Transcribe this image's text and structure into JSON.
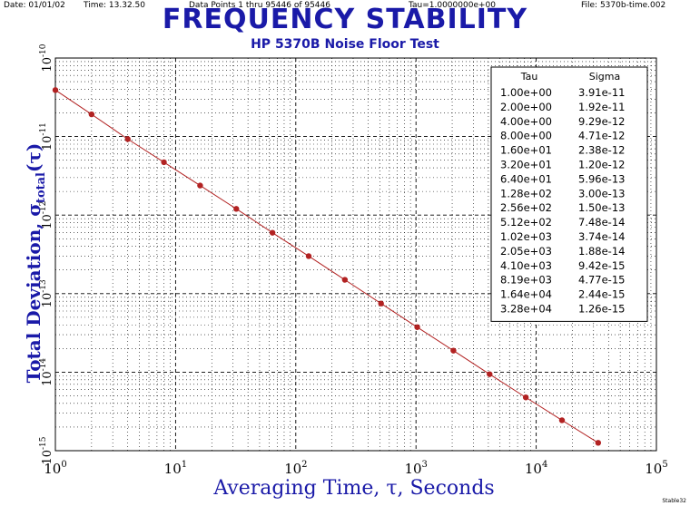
{
  "header": {
    "date": "Date: 01/01/02",
    "time": "Time: 13.32.50",
    "points": "Data Points 1 thru 95446 of 95446",
    "tau": "Tau=1.0000000e+00",
    "file": "File: 5370b-time.002"
  },
  "corner_mark": "Stable32",
  "colors": {
    "title": "#1a1aa8",
    "curve": "#b22222",
    "marker": "#b22222",
    "grid": "#000000"
  },
  "chart_data": {
    "type": "line",
    "title": "FREQUENCY STABILITY",
    "subtitle": "HP 5370B Noise Floor Test",
    "xlabel": "Averaging Time, τ, Seconds",
    "ylabel_main": "Total Deviation, σ",
    "ylabel_sub": "total",
    "ylabel_arg": "(τ)",
    "xscale": "log",
    "yscale": "log",
    "xlim": [
      1,
      100000
    ],
    "ylim": [
      1e-15,
      1e-10
    ],
    "grid": true,
    "legend": "top-right",
    "x_ticks": [
      {
        "value": 1,
        "base": "10",
        "exp": "0"
      },
      {
        "value": 10,
        "base": "10",
        "exp": "1"
      },
      {
        "value": 100,
        "base": "10",
        "exp": "2"
      },
      {
        "value": 1000,
        "base": "10",
        "exp": "3"
      },
      {
        "value": 10000,
        "base": "10",
        "exp": "4"
      },
      {
        "value": 100000,
        "base": "10",
        "exp": "5"
      }
    ],
    "y_ticks": [
      {
        "value": 1e-10,
        "base": "10",
        "exp": "-10"
      },
      {
        "value": 1e-11,
        "base": "10",
        "exp": "-11"
      },
      {
        "value": 1e-12,
        "base": "10",
        "exp": "-12"
      },
      {
        "value": 1e-13,
        "base": "10",
        "exp": "-13"
      },
      {
        "value": 1e-14,
        "base": "10",
        "exp": "-14"
      },
      {
        "value": 1e-15,
        "base": "10",
        "exp": "-15"
      }
    ],
    "table": {
      "headers": [
        "Tau",
        "Sigma"
      ],
      "rows": [
        [
          "1.00e+00",
          "3.91e-11"
        ],
        [
          "2.00e+00",
          "1.92e-11"
        ],
        [
          "4.00e+00",
          "9.29e-12"
        ],
        [
          "8.00e+00",
          "4.71e-12"
        ],
        [
          "1.60e+01",
          "2.38e-12"
        ],
        [
          "3.20e+01",
          "1.20e-12"
        ],
        [
          "6.40e+01",
          "5.96e-13"
        ],
        [
          "1.28e+02",
          "3.00e-13"
        ],
        [
          "2.56e+02",
          "1.50e-13"
        ],
        [
          "5.12e+02",
          "7.48e-14"
        ],
        [
          "1.02e+03",
          "3.74e-14"
        ],
        [
          "2.05e+03",
          "1.88e-14"
        ],
        [
          "4.10e+03",
          "9.42e-15"
        ],
        [
          "8.19e+03",
          "4.77e-15"
        ],
        [
          "1.64e+04",
          "2.44e-15"
        ],
        [
          "3.28e+04",
          "1.26e-15"
        ]
      ]
    },
    "series": [
      {
        "x": [
          1,
          2,
          4,
          8,
          16,
          32,
          64,
          128,
          256,
          512,
          1024,
          2048,
          4096,
          8192,
          16384,
          32768
        ],
        "y": [
          3.91e-11,
          1.92e-11,
          9.29e-12,
          4.71e-12,
          2.38e-12,
          1.2e-12,
          5.96e-13,
          3e-13,
          1.5e-13,
          7.48e-14,
          3.74e-14,
          1.88e-14,
          9.42e-15,
          4.77e-15,
          2.44e-15,
          1.26e-15
        ]
      }
    ]
  }
}
